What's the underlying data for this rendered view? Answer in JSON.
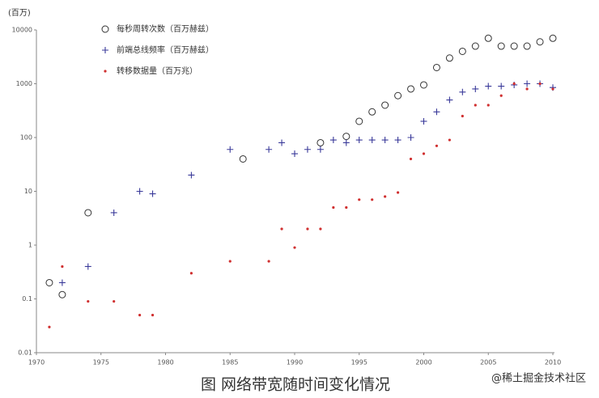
{
  "chart_data": {
    "type": "scatter",
    "y_unit": "(百万)",
    "caption": "图 网络带宽随时间变化情况",
    "watermark": "@稀土掘金技术社区",
    "xlim": [
      1970,
      2010
    ],
    "xticks": [
      1970,
      1975,
      1980,
      1985,
      1990,
      1995,
      2000,
      2005,
      2010
    ],
    "ylim": [
      0.01,
      10000
    ],
    "yticks": [
      0.01,
      0.1,
      1,
      10,
      100,
      1000,
      10000
    ],
    "y_scale": "log",
    "grid": false,
    "legend": "top-left",
    "series": [
      {
        "name": "每秒周转次数（百万赫兹）",
        "color": "#333333",
        "marker": "circle",
        "x": [
          1971,
          1972,
          1974,
          1986,
          1992,
          1994,
          1995,
          1996,
          1997,
          1998,
          1999,
          2000,
          2001,
          2002,
          2003,
          2004,
          2005,
          2006,
          2007,
          2008,
          2009,
          2010
        ],
        "values": [
          0.2,
          0.12,
          4,
          40,
          80,
          105,
          200,
          300,
          400,
          600,
          800,
          950,
          2000,
          3000,
          4000,
          5000,
          7000,
          5000,
          5000,
          5000,
          6000,
          7000
        ]
      },
      {
        "name": "前端总线频率（百万赫兹）",
        "color": "#3a3a9a",
        "marker": "plus",
        "x": [
          1972,
          1974,
          1976,
          1978,
          1979,
          1982,
          1985,
          1988,
          1989,
          1990,
          1991,
          1992,
          1993,
          1994,
          1995,
          1996,
          1997,
          1998,
          1999,
          2000,
          2001,
          2002,
          2003,
          2004,
          2005,
          2006,
          2007,
          2008,
          2009,
          2010
        ],
        "values": [
          0.2,
          0.4,
          4,
          10,
          9,
          20,
          60,
          60,
          80,
          50,
          60,
          60,
          90,
          80,
          90,
          90,
          90,
          90,
          100,
          200,
          300,
          500,
          700,
          800,
          900,
          900,
          950,
          1000,
          1000,
          850
        ]
      },
      {
        "name": "转移数据量（百万兆）",
        "color": "#d03030",
        "marker": "dot",
        "x": [
          1971,
          1972,
          1974,
          1976,
          1978,
          1979,
          1982,
          1985,
          1988,
          1989,
          1990,
          1991,
          1992,
          1993,
          1994,
          1995,
          1996,
          1997,
          1998,
          1999,
          2000,
          2001,
          2002,
          2003,
          2004,
          2005,
          2006,
          2007,
          2008,
          2009,
          2010
        ],
        "values": [
          0.03,
          0.4,
          0.09,
          0.09,
          0.05,
          0.05,
          0.3,
          0.5,
          0.5,
          2,
          0.9,
          2,
          2,
          5,
          5,
          7,
          7,
          8,
          9.5,
          40,
          50,
          70,
          90,
          250,
          400,
          400,
          600,
          1000,
          800,
          1000,
          800
        ]
      }
    ]
  }
}
